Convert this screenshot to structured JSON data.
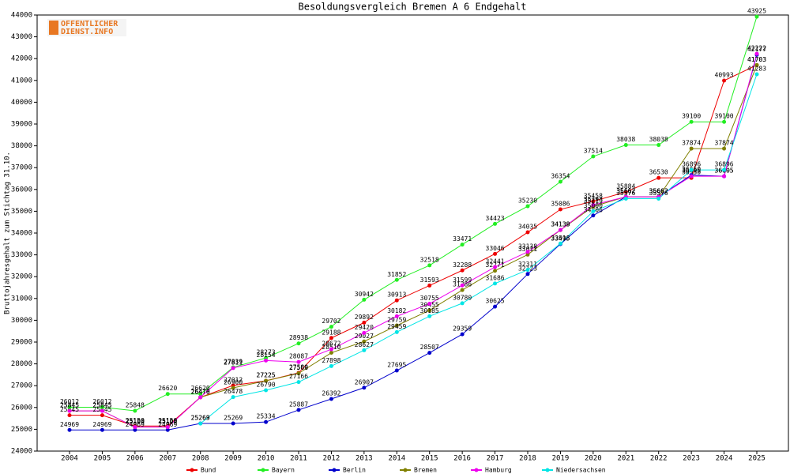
{
  "chart_data": {
    "type": "line",
    "title": "Besoldungsvergleich Bremen A 6 Endgehalt",
    "y_label": "Bruttojahresgehalt zum Stichtag 31.10.",
    "logo": [
      "OFFENTLICHER",
      "DIENST.INFO"
    ],
    "categories": [
      "2004",
      "2005",
      "2006",
      "2007",
      "2008",
      "2009",
      "2010",
      "2011",
      "2012",
      "2013",
      "2014",
      "2015",
      "2016",
      "2017",
      "2018",
      "2019",
      "2020",
      "2021",
      "2022",
      "2023",
      "2024",
      "2025"
    ],
    "ylim": [
      24000,
      44000
    ],
    "yticks": [
      24000,
      25000,
      26000,
      27000,
      28000,
      29000,
      30000,
      31000,
      32000,
      33000,
      34000,
      35000,
      36000,
      37000,
      38000,
      39000,
      40000,
      41000,
      42000,
      43000,
      44000
    ],
    "series": [
      {
        "name": "Bund",
        "color": "#ee0000",
        "values": [
          25645,
          25645,
          25150,
          25150,
          26470,
          27012,
          27225,
          27589,
          29188,
          29892,
          30913,
          31593,
          32288,
          33046,
          34035,
          35086,
          35458,
          35884,
          36530,
          36530,
          40993,
          41703
        ]
      },
      {
        "name": "Bayern",
        "color": "#22ee22",
        "values": [
          26012,
          26012,
          25848,
          26620,
          26620,
          27839,
          28273,
          28938,
          29702,
          30942,
          31852,
          32518,
          33471,
          34423,
          35230,
          36354,
          37514,
          38038,
          38038,
          39100,
          39100,
          43925
        ]
      },
      {
        "name": "Berlin",
        "color": "#0000cc",
        "values": [
          24969,
          24969,
          24969,
          24969,
          25269,
          25269,
          25334,
          25887,
          26392,
          26907,
          27695,
          28507,
          29359,
          30625,
          32123,
          33495,
          34806,
          35662,
          35662,
          36660,
          36605,
          42177
        ]
      },
      {
        "name": "Bremen",
        "color": "#808000",
        "values": [
          25845,
          25845,
          25103,
          25103,
          26470,
          26900,
          27225,
          27566,
          28510,
          29027,
          29759,
          30455,
          31386,
          32271,
          33011,
          34138,
          35219,
          35662,
          35662,
          37874,
          37874,
          41703
        ]
      },
      {
        "name": "Hamburg",
        "color": "#ee00ee",
        "values": [
          25845,
          25845,
          25100,
          25100,
          26470,
          27811,
          28154,
          28087,
          28672,
          29420,
          30182,
          30755,
          31599,
          32441,
          33138,
          34139,
          35293,
          35662,
          35662,
          36605,
          36605,
          42222
        ]
      },
      {
        "name": "Niedersachsen",
        "color": "#00e5e5",
        "values": [
          null,
          null,
          null,
          null,
          25263,
          26478,
          26790,
          27166,
          27898,
          28627,
          29459,
          30185,
          30780,
          31686,
          32311,
          33518,
          35000,
          35576,
          35576,
          36896,
          36896,
          41283
        ]
      }
    ]
  }
}
